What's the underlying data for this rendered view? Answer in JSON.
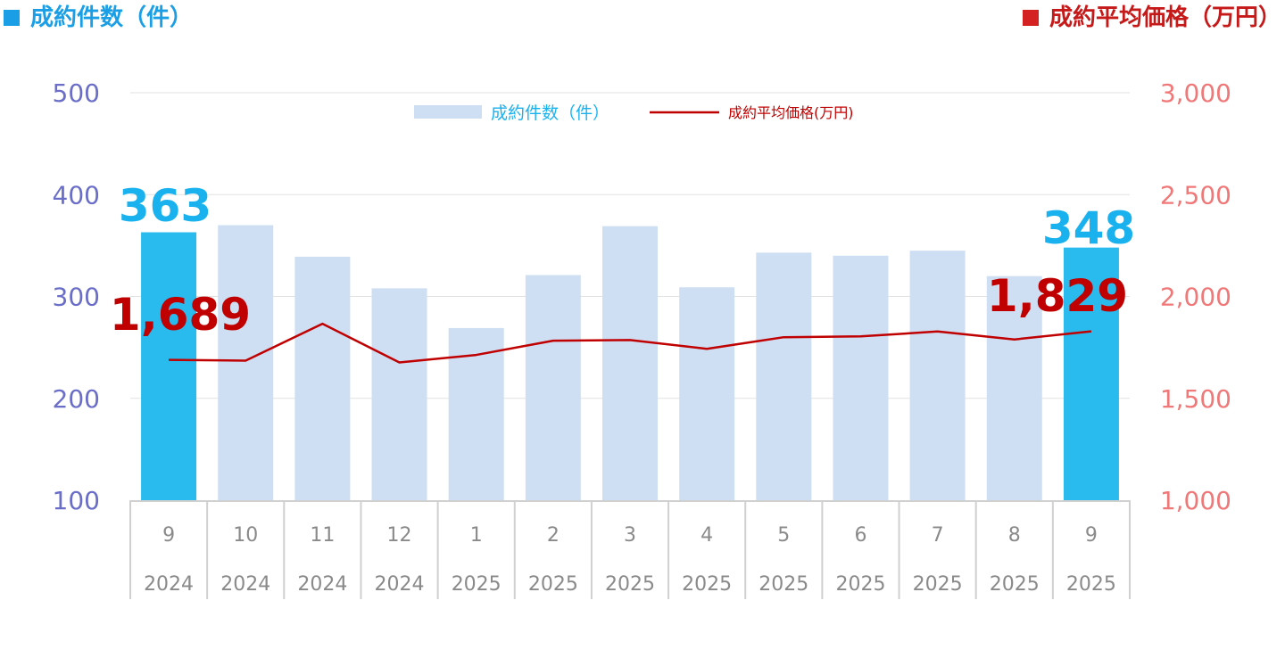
{
  "header": {
    "left_title": "成約件数（件）",
    "right_title": "成約平均価格（万円）"
  },
  "colors": {
    "bar_normal": "#cfdff3",
    "bar_highlight": "#29bbee",
    "line": "#c00000",
    "left_axis": "#6a6ec8",
    "right_axis": "#f07878"
  },
  "chart_data": {
    "type": "bar",
    "categories": [
      "9",
      "10",
      "11",
      "12",
      "1",
      "2",
      "3",
      "4",
      "5",
      "6",
      "7",
      "8",
      "9"
    ],
    "years": [
      "2024",
      "2024",
      "2024",
      "2024",
      "2025",
      "2025",
      "2025",
      "2025",
      "2025",
      "2025",
      "2025",
      "2025",
      "2025"
    ],
    "highlight_indices": [
      0,
      12
    ],
    "series": [
      {
        "name": "成約件数（件）",
        "type": "bar",
        "axis": "left",
        "values": [
          363,
          370,
          339,
          308,
          269,
          321,
          369,
          309,
          343,
          340,
          345,
          320,
          348
        ]
      },
      {
        "name": "成約平均価格(万円)",
        "type": "line",
        "axis": "right",
        "values": [
          1689,
          1685,
          1866,
          1676,
          1713,
          1783,
          1786,
          1743,
          1800,
          1804,
          1828,
          1789,
          1829
        ]
      }
    ],
    "left_axis": {
      "ylim": [
        100,
        500
      ],
      "ticks": [
        "100",
        "200",
        "300",
        "400",
        "500"
      ]
    },
    "right_axis": {
      "ylim": [
        1000,
        3000
      ],
      "ticks": [
        "1,000",
        "1,500",
        "2,000",
        "2,500",
        "3,000"
      ]
    },
    "annotations": {
      "first_count": "363",
      "last_count": "348",
      "first_price": "1,689",
      "last_price": "1,829"
    },
    "grid": true,
    "legend": "top-center"
  }
}
